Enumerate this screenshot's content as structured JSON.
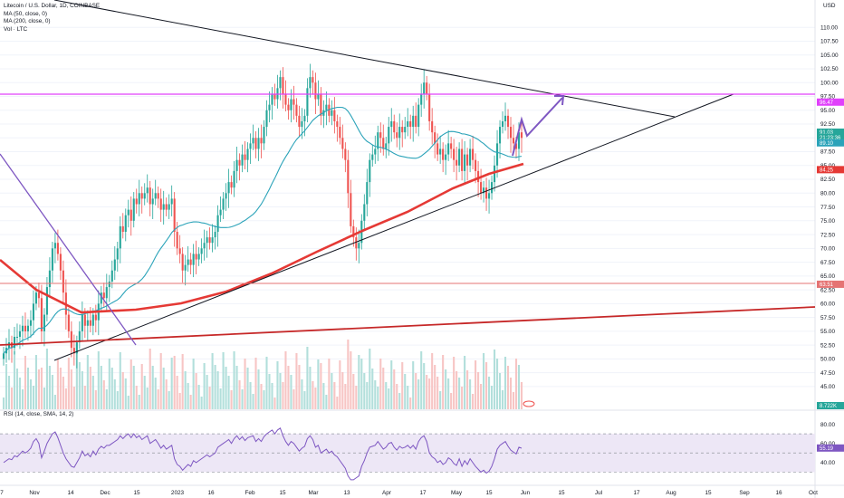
{
  "legend": {
    "symbol": "Litecoin / U.S. Dollar, 1D, COINBASE",
    "ma50": "MA (50, close, 0)",
    "ma200": "MA (200, close, 0)",
    "vol": "Vol · LTC"
  },
  "rsi_legend": "RSI (14, close, SMA, 14, 2)",
  "currency": "USD",
  "colors": {
    "up": "#26a69a",
    "down": "#ef5350",
    "vol_up": "#b2dfdb",
    "vol_down": "#f7c5c4",
    "ma50": "#2ba3b9",
    "ma200": "#e53935",
    "magenta": "#e040fb",
    "support_red": "#e57373",
    "long_red": "#c62828",
    "purple": "#7e57c2",
    "rsi_line": "#7e57c2",
    "rsi_band": "#ede7f6"
  },
  "chart_data": {
    "type": "candlestick",
    "y_ticks": [
      "110.00",
      "107.50",
      "105.00",
      "102.50",
      "100.00",
      "97.50",
      "95.00",
      "92.50",
      "90.00",
      "87.50",
      "85.00",
      "82.50",
      "80.00",
      "77.50",
      "75.00",
      "72.50",
      "70.00",
      "67.50",
      "65.00",
      "62.50",
      "60.00",
      "57.50",
      "55.00",
      "52.50",
      "50.00",
      "47.50",
      "45.00"
    ],
    "x_ticks": [
      "7",
      "Nov",
      "14",
      "Dec",
      "15",
      "2023",
      "16",
      "Feb",
      "15",
      "Mar",
      "13",
      "Apr",
      "17",
      "May",
      "15",
      "Jun",
      "15",
      "Jul",
      "17",
      "Aug",
      "15",
      "Sep",
      "16",
      "Oct"
    ],
    "ylim": [
      44,
      112
    ],
    "series": [
      {
        "name": "Litecoin / U.S. Dollar, 1D, COINBASE",
        "kind": "ohlc",
        "close": [
          51,
          52,
          53,
          52,
          54,
          54,
          55,
          56,
          55,
          56,
          57,
          60,
          62,
          61,
          55,
          58,
          63,
          66,
          70,
          71,
          69,
          66,
          62,
          58,
          55,
          52,
          51,
          53,
          55,
          58,
          56,
          57,
          56,
          58,
          57,
          60,
          62,
          61,
          63,
          64,
          66,
          68,
          70,
          74,
          73,
          76,
          77,
          75,
          79,
          78,
          80,
          79,
          80,
          81,
          78,
          79,
          80,
          79,
          77,
          78,
          77,
          78,
          79,
          73,
          70,
          69,
          66,
          67,
          68,
          67,
          69,
          68,
          69,
          70,
          71,
          72,
          71,
          72,
          73,
          76,
          77,
          79,
          80,
          82,
          81,
          84,
          86,
          85,
          87,
          86,
          88,
          89,
          90,
          88,
          90,
          89,
          92,
          95,
          96,
          98,
          97,
          99,
          101,
          98,
          96,
          95,
          97,
          96,
          94,
          92,
          93,
          94,
          99,
          101,
          100,
          97,
          98,
          94,
          95,
          96,
          94,
          95,
          93,
          92,
          90,
          88,
          86,
          80,
          74,
          72,
          70,
          71,
          75,
          78,
          82,
          86,
          87,
          88,
          91,
          90,
          88,
          89,
          92,
          93,
          91,
          90,
          92,
          91,
          92,
          93,
          92,
          94,
          92,
          96,
          98,
          100,
          98,
          93,
          91,
          89,
          87,
          88,
          86,
          87,
          89,
          88,
          86,
          85,
          88,
          84,
          87,
          85,
          88,
          86,
          84,
          82,
          80,
          81,
          79,
          80,
          82,
          85,
          89,
          92,
          93,
          94,
          92,
          90,
          89,
          88,
          91,
          90
        ],
        "open": [
          50,
          51,
          52,
          53,
          52,
          54,
          54,
          55,
          56,
          55,
          56,
          57,
          60,
          62,
          61,
          55,
          58,
          63,
          66,
          70,
          71,
          69,
          66,
          62,
          58,
          55,
          52,
          51,
          53,
          55,
          58,
          56,
          57,
          56,
          58,
          57,
          60,
          62,
          61,
          63,
          64,
          66,
          68,
          70,
          74,
          73,
          76,
          77,
          75,
          79,
          78,
          80,
          79,
          80,
          81,
          78,
          79,
          80,
          79,
          77,
          78,
          77,
          78,
          79,
          73,
          70,
          69,
          66,
          67,
          68,
          67,
          69,
          68,
          69,
          70,
          71,
          72,
          71,
          72,
          73,
          76,
          77,
          79,
          80,
          82,
          81,
          84,
          86,
          85,
          87,
          86,
          88,
          89,
          90,
          88,
          90,
          89,
          92,
          95,
          96,
          98,
          97,
          99,
          101,
          98,
          96,
          95,
          97,
          96,
          94,
          92,
          93,
          94,
          99,
          101,
          100,
          97,
          98,
          94,
          95,
          96,
          94,
          95,
          93,
          92,
          90,
          88,
          86,
          80,
          74,
          72,
          70,
          71,
          75,
          78,
          82,
          86,
          87,
          88,
          91,
          90,
          88,
          89,
          92,
          93,
          91,
          90,
          92,
          91,
          92,
          93,
          92,
          94,
          92,
          96,
          98,
          100,
          98,
          93,
          91,
          89,
          87,
          88,
          86,
          87,
          89,
          88,
          86,
          85,
          88,
          84,
          87,
          85,
          88,
          86,
          84,
          82,
          80,
          81,
          79,
          80,
          82,
          85,
          89,
          92,
          93,
          94,
          92,
          90,
          89,
          88,
          91
        ]
      },
      {
        "name": "MA (50, close, 0)"
      },
      {
        "name": "MA (200, close, 0)"
      },
      {
        "name": "Vol · LTC"
      },
      {
        "name": "RSI (14, close, SMA, 14, 2)"
      }
    ],
    "price_badges": [
      {
        "label": "96.47",
        "value": 96.47,
        "color": "#e040fb"
      },
      {
        "label": "91.03",
        "value": 91.03,
        "color": "#26a69a"
      },
      {
        "label": "21:23:36",
        "value": 90.1,
        "color": "#26a69a"
      },
      {
        "label": "89.10",
        "value": 89.1,
        "color": "#2ba3b9"
      },
      {
        "label": "84.25",
        "value": 84.25,
        "color": "#e53935"
      },
      {
        "label": "63.51",
        "value": 63.51,
        "color": "#e57373"
      }
    ],
    "vol_badge": "8.722K",
    "rsi": {
      "ticks": [
        "80.00",
        "60.00",
        "40.00"
      ],
      "ylim": [
        20,
        90
      ],
      "upper": 70,
      "lower": 30,
      "mid": 50,
      "badge": "55.19",
      "values": [
        40,
        42,
        44,
        43,
        47,
        46,
        49,
        52,
        50,
        52,
        55,
        62,
        65,
        60,
        45,
        52,
        60,
        65,
        70,
        72,
        66,
        58,
        50,
        44,
        40,
        36,
        35,
        40,
        45,
        52,
        47,
        49,
        46,
        52,
        48,
        54,
        57,
        55,
        58,
        58,
        60,
        62,
        64,
        68,
        65,
        68,
        70,
        66,
        70,
        66,
        68,
        64,
        66,
        68,
        60,
        62,
        64,
        60,
        55,
        58,
        54,
        56,
        58,
        44,
        38,
        36,
        32,
        35,
        38,
        36,
        42,
        40,
        42,
        44,
        46,
        48,
        46,
        48,
        50,
        56,
        58,
        60,
        62,
        64,
        60,
        65,
        68,
        64,
        67,
        63,
        66,
        67,
        68,
        62,
        65,
        62,
        67,
        70,
        72,
        74,
        70,
        74,
        76,
        68,
        62,
        58,
        62,
        60,
        56,
        52,
        55,
        57,
        65,
        68,
        64,
        56,
        58,
        50,
        52,
        54,
        50,
        52,
        48,
        46,
        42,
        38,
        34,
        26,
        22,
        22,
        24,
        26,
        36,
        42,
        50,
        56,
        57,
        58,
        62,
        58,
        54,
        56,
        60,
        61,
        56,
        53,
        57,
        55,
        56,
        58,
        55,
        58,
        54,
        62,
        66,
        68,
        62,
        50,
        46,
        44,
        40,
        42,
        38,
        40,
        45,
        43,
        39,
        37,
        44,
        36,
        42,
        38,
        44,
        40,
        36,
        33,
        30,
        32,
        29,
        31,
        36,
        44,
        54,
        58,
        60,
        62,
        57,
        53,
        51,
        49,
        56,
        55
      ]
    }
  }
}
